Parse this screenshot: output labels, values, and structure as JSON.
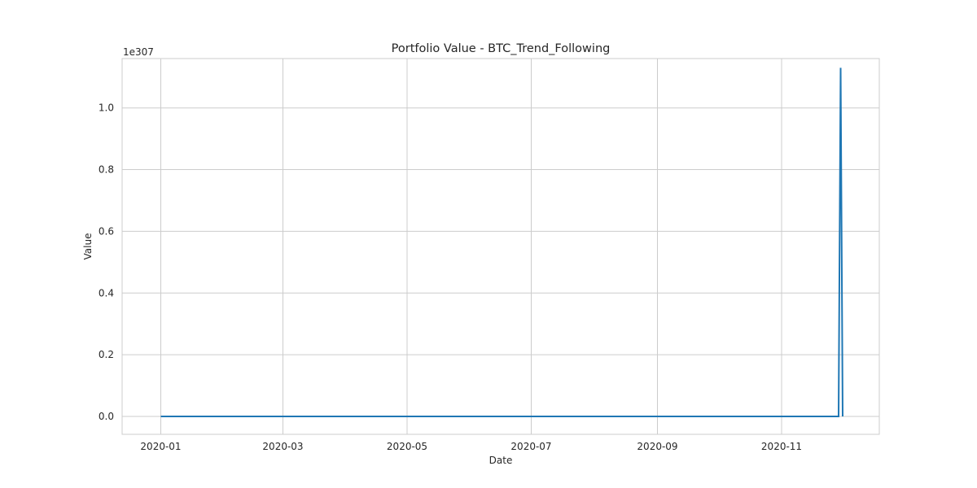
{
  "chart_data": {
    "type": "line",
    "title": "Portfolio Value - BTC_Trend_Following",
    "xlabel": "Date",
    "ylabel": "Value",
    "y_offset_text": "1e307",
    "y_scale_exponent": 307,
    "xlim": [
      "2019-12-13",
      "2020-12-19"
    ],
    "ylim": [
      -0.058,
      1.16
    ],
    "grid": true,
    "x_ticks": [
      "2020-01-01",
      "2020-03-01",
      "2020-05-01",
      "2020-07-01",
      "2020-09-01",
      "2020-11-01"
    ],
    "x_tick_labels": [
      "2020-01",
      "2020-03",
      "2020-05",
      "2020-07",
      "2020-09",
      "2020-11"
    ],
    "y_ticks": [
      0.0,
      0.2,
      0.4,
      0.6,
      0.8,
      1.0
    ],
    "y_tick_labels": [
      "0.0",
      "0.2",
      "0.4",
      "0.6",
      "0.8",
      "1.0"
    ],
    "series": [
      {
        "color": "#1f77b4",
        "x": [
          "2020-01-01",
          "2020-11-29",
          "2020-11-30",
          "2020-12-01"
        ],
        "y": [
          0.0,
          0.0,
          1.13,
          0.0
        ]
      }
    ]
  }
}
